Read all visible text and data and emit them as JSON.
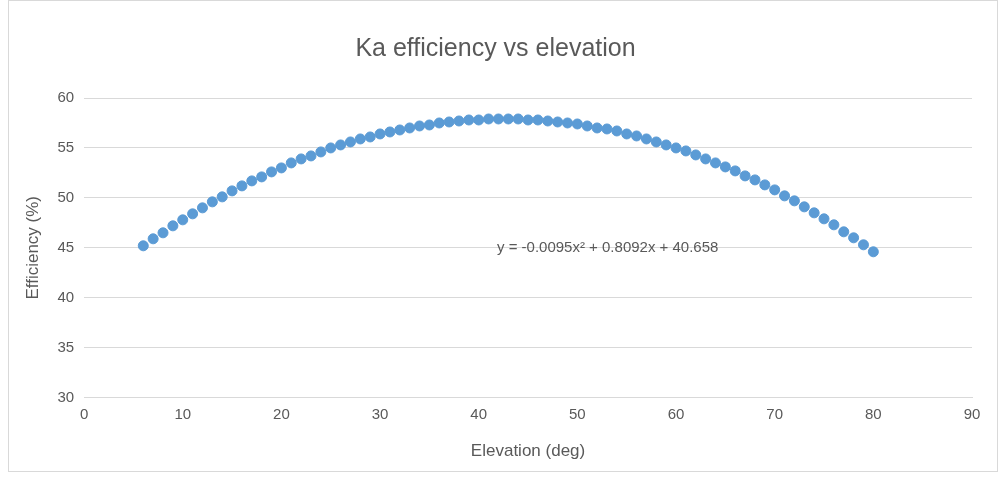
{
  "chart_data": {
    "type": "scatter",
    "title": "Ka efficiency vs elevation",
    "xlabel": "Elevation (deg)",
    "ylabel": "Efficiency (%)",
    "x": [
      6,
      7,
      8,
      9,
      10,
      11,
      12,
      13,
      14,
      15,
      16,
      17,
      18,
      19,
      20,
      21,
      22,
      23,
      24,
      25,
      26,
      27,
      28,
      29,
      30,
      31,
      32,
      33,
      34,
      35,
      36,
      37,
      38,
      39,
      40,
      41,
      42,
      43,
      44,
      45,
      46,
      47,
      48,
      49,
      50,
      51,
      52,
      53,
      54,
      55,
      56,
      57,
      58,
      59,
      60,
      61,
      62,
      63,
      64,
      65,
      66,
      67,
      68,
      69,
      70,
      71,
      72,
      73,
      74,
      75,
      76,
      77,
      78,
      79,
      80
    ],
    "series": [
      {
        "color": "#5b9bd5",
        "values": [
          45.2,
          45.9,
          46.5,
          47.2,
          47.8,
          48.4,
          49.0,
          49.6,
          50.1,
          50.7,
          51.2,
          51.7,
          52.1,
          52.6,
          53.0,
          53.5,
          53.9,
          54.2,
          54.6,
          55.0,
          55.3,
          55.6,
          55.9,
          56.1,
          56.4,
          56.6,
          56.8,
          57.0,
          57.2,
          57.3,
          57.5,
          57.6,
          57.7,
          57.8,
          57.8,
          57.9,
          57.9,
          57.9,
          57.9,
          57.8,
          57.8,
          57.7,
          57.6,
          57.5,
          57.4,
          57.2,
          57.0,
          56.9,
          56.7,
          56.4,
          56.2,
          55.9,
          55.6,
          55.3,
          55.0,
          54.7,
          54.3,
          53.9,
          53.5,
          53.1,
          52.7,
          52.2,
          51.8,
          51.3,
          50.8,
          50.2,
          49.7,
          49.1,
          48.5,
          47.9,
          47.3,
          46.6,
          46.0,
          45.3,
          44.6
        ]
      }
    ],
    "xlim": [
      0,
      90
    ],
    "xticks": [
      0,
      10,
      20,
      30,
      40,
      50,
      60,
      70,
      80,
      90
    ],
    "ylim": [
      30,
      60
    ],
    "yticks": [
      30,
      35,
      40,
      45,
      50,
      55,
      60
    ],
    "grid": "y",
    "legend": false,
    "marker": "circle",
    "annotations": [
      "y = -0.0095x² + 0.8092x + 40.658"
    ]
  }
}
